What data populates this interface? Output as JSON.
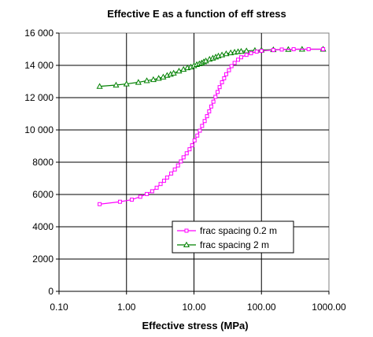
{
  "chart_data": {
    "type": "line",
    "title": "Effective E as a function of eff stress",
    "xlabel": "Effective stress (MPa)",
    "ylabel": "",
    "x_scale": "log",
    "xlim": [
      0.1,
      1000
    ],
    "ylim": [
      0,
      16000
    ],
    "grid": true,
    "legend_placement": "lower-right",
    "x_tick_labels": [
      "0.10",
      "1.00",
      "10.00",
      "100.00",
      "1000.00"
    ],
    "x_tick_values": [
      0.1,
      1,
      10,
      100,
      1000
    ],
    "y_tick_labels": [
      "0",
      "2000",
      "4000",
      "6000",
      "8000",
      "10 000",
      "12 000",
      "14 000",
      "16 000"
    ],
    "y_tick_values": [
      0,
      2000,
      4000,
      6000,
      8000,
      10000,
      12000,
      14000,
      16000
    ],
    "series": [
      {
        "name": "frac spacing 0.2 m",
        "color": "#ff00ff",
        "marker": "square",
        "points": [
          [
            0.4,
            5400
          ],
          [
            0.8,
            5550
          ],
          [
            1.2,
            5680
          ],
          [
            1.6,
            5860
          ],
          [
            2.0,
            6030
          ],
          [
            2.4,
            6200
          ],
          [
            2.8,
            6420
          ],
          [
            3.2,
            6650
          ],
          [
            3.6,
            6850
          ],
          [
            4.0,
            7050
          ],
          [
            4.6,
            7300
          ],
          [
            5.2,
            7550
          ],
          [
            5.8,
            7800
          ],
          [
            6.4,
            8050
          ],
          [
            7.0,
            8300
          ],
          [
            7.8,
            8550
          ],
          [
            8.6,
            8800
          ],
          [
            9.4,
            9050
          ],
          [
            10.2,
            9350
          ],
          [
            11.2,
            9650
          ],
          [
            12.2,
            9950
          ],
          [
            13.2,
            10250
          ],
          [
            14.4,
            10550
          ],
          [
            15.6,
            10850
          ],
          [
            16.8,
            11150
          ],
          [
            18.0,
            11450
          ],
          [
            19.4,
            11750
          ],
          [
            20.8,
            12050
          ],
          [
            22.4,
            12350
          ],
          [
            24.0,
            12650
          ],
          [
            26.0,
            12950
          ],
          [
            28.0,
            13200
          ],
          [
            30.0,
            13450
          ],
          [
            33.0,
            13700
          ],
          [
            36.0,
            13950
          ],
          [
            40.0,
            14150
          ],
          [
            45.0,
            14350
          ],
          [
            50.0,
            14500
          ],
          [
            60.0,
            14650
          ],
          [
            70.0,
            14750
          ],
          [
            85.0,
            14850
          ],
          [
            100.0,
            14900
          ],
          [
            150.0,
            14950
          ],
          [
            200.0,
            14980
          ],
          [
            300.0,
            15000
          ],
          [
            500.0,
            15000
          ],
          [
            820.0,
            15000
          ]
        ]
      },
      {
        "name": "frac spacing 2 m",
        "color": "#008000",
        "marker": "triangle",
        "points": [
          [
            0.4,
            12700
          ],
          [
            0.7,
            12780
          ],
          [
            1.0,
            12850
          ],
          [
            1.5,
            12950
          ],
          [
            2.0,
            13050
          ],
          [
            2.5,
            13120
          ],
          [
            3.0,
            13200
          ],
          [
            3.5,
            13280
          ],
          [
            4.0,
            13380
          ],
          [
            4.5,
            13450
          ],
          [
            5.0,
            13520
          ],
          [
            6.0,
            13650
          ],
          [
            7.0,
            13750
          ],
          [
            8.0,
            13850
          ],
          [
            9.0,
            13900
          ],
          [
            10.0,
            13980
          ],
          [
            11.0,
            14050
          ],
          [
            12.0,
            14100
          ],
          [
            13.0,
            14150
          ],
          [
            14.0,
            14220
          ],
          [
            15.0,
            14280
          ],
          [
            17.0,
            14380
          ],
          [
            19.0,
            14450
          ],
          [
            21.0,
            14520
          ],
          [
            23.0,
            14580
          ],
          [
            26.0,
            14650
          ],
          [
            30.0,
            14720
          ],
          [
            35.0,
            14780
          ],
          [
            40.0,
            14820
          ],
          [
            45.0,
            14850
          ],
          [
            50.0,
            14870
          ],
          [
            60.0,
            14900
          ],
          [
            80.0,
            14930
          ],
          [
            100.0,
            14950
          ],
          [
            150.0,
            14970
          ],
          [
            250.0,
            14990
          ],
          [
            400.0,
            15000
          ],
          [
            820.0,
            15000
          ]
        ]
      }
    ]
  }
}
